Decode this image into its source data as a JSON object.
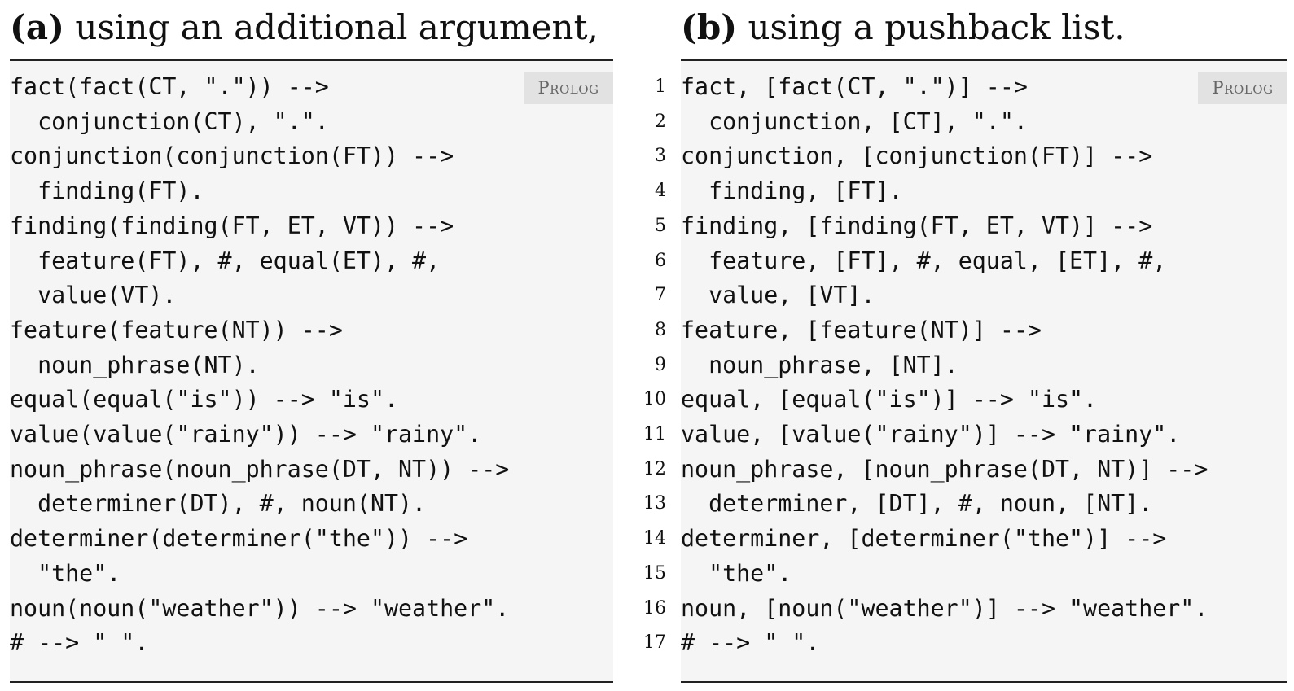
{
  "panel_a": {
    "caption_tag": "(a)",
    "caption_text": "using an additional argument,",
    "language": "Prolog",
    "lines": [
      "fact(fact(CT, \".\")) -->",
      "  conjunction(CT), \".\".",
      "conjunction(conjunction(FT)) -->",
      "  finding(FT).",
      "finding(finding(FT, ET, VT)) -->",
      "  feature(FT), #, equal(ET), #,",
      "  value(VT).",
      "feature(feature(NT)) -->",
      "  noun_phrase(NT).",
      "equal(equal(\"is\")) --> \"is\".",
      "value(value(\"rainy\")) --> \"rainy\".",
      "noun_phrase(noun_phrase(DT, NT)) -->",
      "  determiner(DT), #, noun(NT).",
      "determiner(determiner(\"the\")) -->",
      "  \"the\".",
      "noun(noun(\"weather\")) --> \"weather\".",
      "# --> \" \"."
    ]
  },
  "panel_b": {
    "caption_tag": "(b)",
    "caption_text": "using a pushback list.",
    "language": "Prolog",
    "line_numbers": [
      "1",
      "2",
      "3",
      "4",
      "5",
      "6",
      "7",
      "8",
      "9",
      "10",
      "11",
      "12",
      "13",
      "14",
      "15",
      "16",
      "17"
    ],
    "lines": [
      "fact, [fact(CT, \".\")] -->",
      "  conjunction, [CT], \".\".",
      "conjunction, [conjunction(FT)] -->",
      "  finding, [FT].",
      "finding, [finding(FT, ET, VT)] -->",
      "  feature, [FT], #, equal, [ET], #,",
      "  value, [VT].",
      "feature, [feature(NT)] -->",
      "  noun_phrase, [NT].",
      "equal, [equal(\"is\")] --> \"is\".",
      "value, [value(\"rainy\")] --> \"rainy\".",
      "noun_phrase, [noun_phrase(DT, NT)] -->",
      "  determiner, [DT], #, noun, [NT].",
      "determiner, [determiner(\"the\")] -->",
      "  \"the\".",
      "noun, [noun(\"weather\")] --> \"weather\".",
      "# --> \" \"."
    ]
  }
}
